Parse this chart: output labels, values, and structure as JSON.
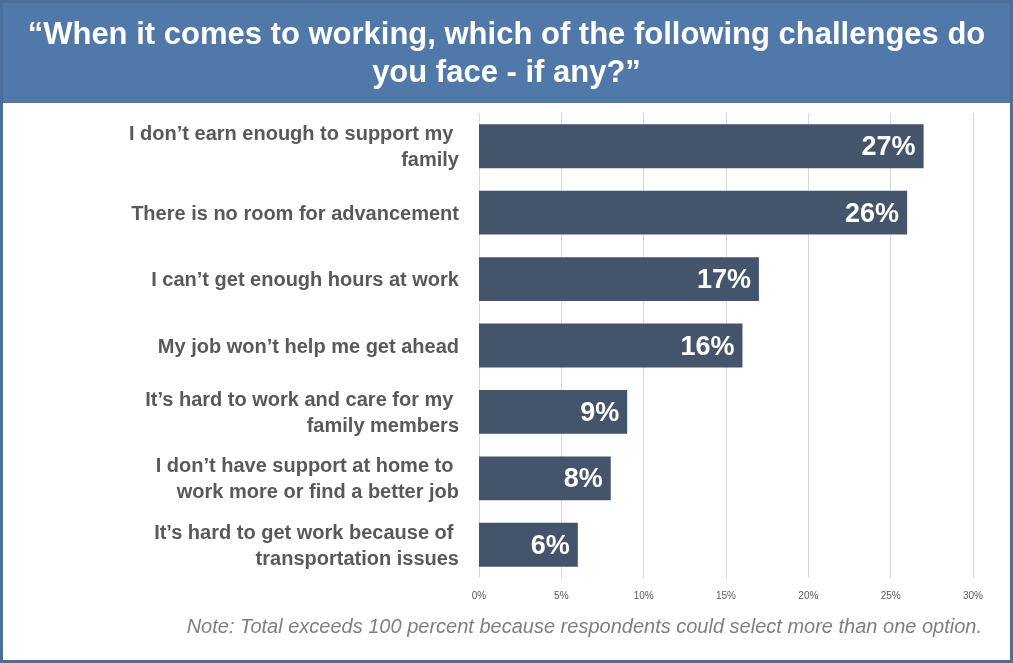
{
  "chart_data": {
    "type": "bar",
    "orientation": "horizontal",
    "title": "“When it comes to working, which of the following challenges do you face - if any?”",
    "categories": [
      "I don’t earn enough to support my family",
      "There is no room for advancement",
      "I can’t get enough hours at work",
      "My job won’t help me get ahead",
      "It’s hard to work and care for my family members",
      "I don’t have support at home to work more or find a better job",
      "It’s hard to get work because of transportation issues"
    ],
    "values": [
      27,
      26,
      17,
      16,
      9,
      8,
      6
    ],
    "value_labels": [
      "27%",
      "26%",
      "17%",
      "16%",
      "9%",
      "8%",
      "6%"
    ],
    "color": "#44546a",
    "xlim": [
      0,
      30
    ],
    "xticks": [
      {
        "value": 0,
        "label": "0%"
      },
      {
        "value": 5,
        "label": "5%"
      },
      {
        "value": 10,
        "label": "10%"
      },
      {
        "value": 15,
        "label": "15%"
      },
      {
        "value": 20,
        "label": "20%"
      },
      {
        "value": 25,
        "label": "25%"
      },
      {
        "value": 30,
        "label": "30%"
      }
    ],
    "grid": "x",
    "annotations": [
      "Note: Total exceeds 100 percent because respondents could select more than one option."
    ]
  }
}
